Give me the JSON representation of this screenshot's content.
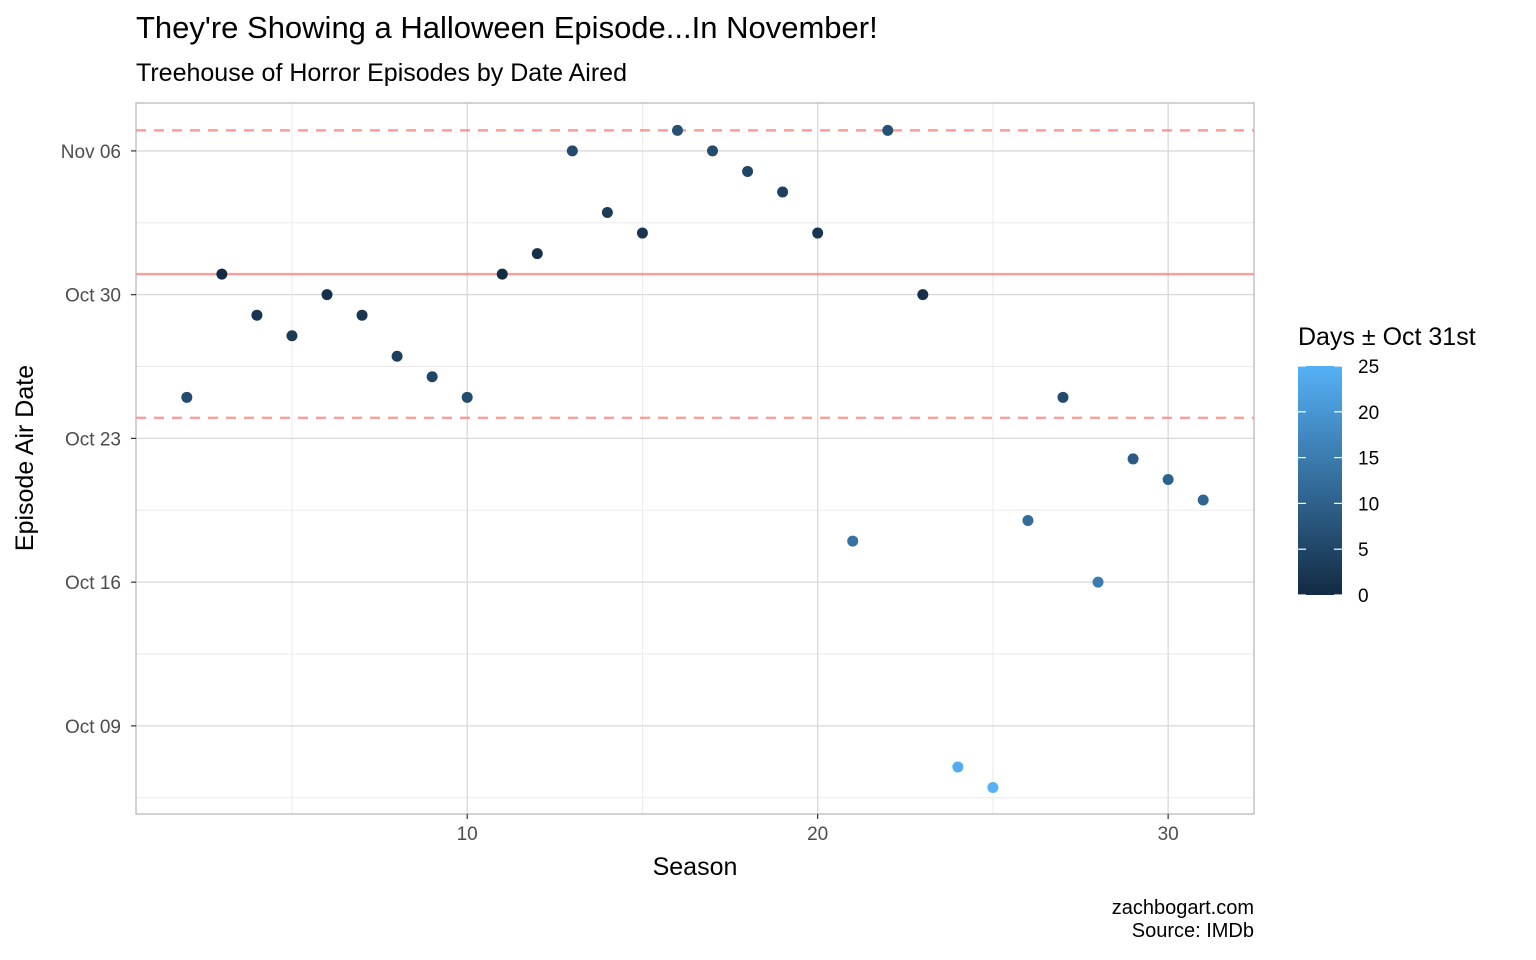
{
  "chart_data": {
    "type": "scatter",
    "title": "They're Showing a Halloween Episode...In November!",
    "subtitle": "Treehouse of Horror Episodes by Date Aired",
    "xlabel": "Season",
    "ylabel": "Episode Air Date",
    "x_ticks": [
      "10",
      "20",
      "30"
    ],
    "x_tick_values": [
      10,
      20,
      30
    ],
    "y_ticks": [
      "Oct 09",
      "Oct 16",
      "Oct 23",
      "Oct 30",
      "Nov 06"
    ],
    "y_tick_values": [
      "Oct 09",
      "Oct 16",
      "Oct 23",
      "Oct 30",
      "Nov 06"
    ],
    "xlim": [
      0.55,
      32.45
    ],
    "ylim": [
      "Oct 04 17:00",
      "Nov 08 08:00"
    ],
    "grid": true,
    "reference_lines": [
      {
        "y": "Oct 31",
        "style": "solid",
        "color": "#F8766D"
      },
      {
        "y": "Oct 24",
        "style": "dashed",
        "color": "#F8766D"
      },
      {
        "y": "Nov 07",
        "style": "dashed",
        "color": "#F8766D"
      }
    ],
    "points": [
      {
        "season": 2,
        "date": "Oct 25"
      },
      {
        "season": 3,
        "date": "Oct 31"
      },
      {
        "season": 4,
        "date": "Oct 29"
      },
      {
        "season": 5,
        "date": "Oct 28"
      },
      {
        "season": 6,
        "date": "Oct 30"
      },
      {
        "season": 7,
        "date": "Oct 29"
      },
      {
        "season": 8,
        "date": "Oct 27"
      },
      {
        "season": 9,
        "date": "Oct 26"
      },
      {
        "season": 10,
        "date": "Oct 25"
      },
      {
        "season": 11,
        "date": "Oct 31"
      },
      {
        "season": 12,
        "date": "Nov 01"
      },
      {
        "season": 13,
        "date": "Nov 06"
      },
      {
        "season": 14,
        "date": "Nov 03"
      },
      {
        "season": 15,
        "date": "Nov 02"
      },
      {
        "season": 16,
        "date": "Nov 07"
      },
      {
        "season": 17,
        "date": "Nov 06"
      },
      {
        "season": 18,
        "date": "Nov 05"
      },
      {
        "season": 19,
        "date": "Nov 04"
      },
      {
        "season": 20,
        "date": "Nov 02"
      },
      {
        "season": 21,
        "date": "Oct 18"
      },
      {
        "season": 22,
        "date": "Nov 07"
      },
      {
        "season": 23,
        "date": "Oct 30"
      },
      {
        "season": 24,
        "date": "Oct 07"
      },
      {
        "season": 25,
        "date": "Oct 06"
      },
      {
        "season": 26,
        "date": "Oct 19"
      },
      {
        "season": 27,
        "date": "Oct 25"
      },
      {
        "season": 28,
        "date": "Oct 16"
      },
      {
        "season": 29,
        "date": "Oct 22"
      },
      {
        "season": 30,
        "date": "Oct 21"
      },
      {
        "season": 31,
        "date": "Oct 20"
      }
    ],
    "legend": {
      "title": "Days ± Oct 31st",
      "position": "right",
      "ticks": [
        "0",
        "5",
        "10",
        "15",
        "20",
        "25"
      ],
      "tick_values": [
        0,
        5,
        10,
        15,
        20,
        25
      ],
      "range": [
        0,
        25
      ],
      "color_low": "#132B43",
      "color_high": "#56B1F7"
    },
    "caption": [
      "zachbogart.com",
      "Source: IMDb"
    ]
  }
}
